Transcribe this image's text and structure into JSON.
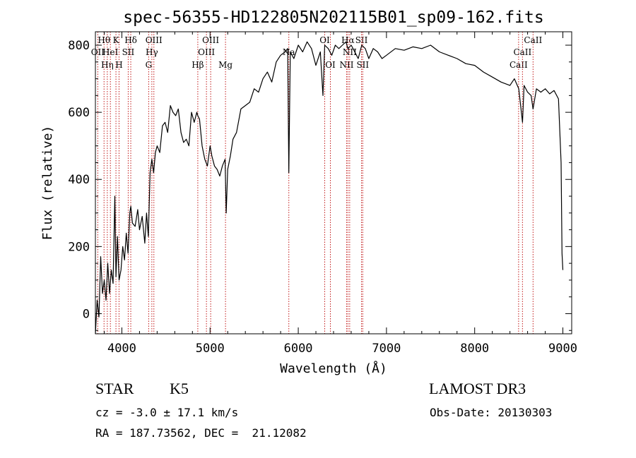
{
  "chart_data": {
    "type": "line",
    "title": "spec-56355-HD122805N202115B01_sp09-162.fits",
    "xlabel": "Wavelength (Å)",
    "ylabel": "Flux (relative)",
    "xlim": [
      3700,
      9100
    ],
    "ylim": [
      -60,
      840
    ],
    "x_ticks": [
      4000,
      5000,
      6000,
      7000,
      8000,
      9000
    ],
    "y_ticks": [
      0,
      200,
      400,
      600,
      800
    ],
    "grid": false,
    "series": [
      {
        "name": "spectrum",
        "x": [
          3700,
          3720,
          3740,
          3760,
          3780,
          3800,
          3820,
          3840,
          3860,
          3880,
          3900,
          3920,
          3933,
          3950,
          3968,
          3990,
          4010,
          4030,
          4050,
          4070,
          4090,
          4101,
          4120,
          4150,
          4180,
          4200,
          4230,
          4260,
          4280,
          4300,
          4320,
          4340,
          4360,
          4380,
          4400,
          4430,
          4460,
          4490,
          4520,
          4550,
          4580,
          4610,
          4640,
          4670,
          4700,
          4730,
          4760,
          4790,
          4820,
          4850,
          4861,
          4880,
          4910,
          4940,
          4970,
          5000,
          5020,
          5050,
          5080,
          5110,
          5140,
          5170,
          5183,
          5200,
          5230,
          5260,
          5300,
          5350,
          5400,
          5450,
          5500,
          5550,
          5600,
          5650,
          5700,
          5750,
          5800,
          5850,
          5880,
          5893,
          5910,
          5950,
          6000,
          6050,
          6100,
          6150,
          6200,
          6250,
          6280,
          6300,
          6340,
          6380,
          6420,
          6460,
          6500,
          6540,
          6563,
          6600,
          6640,
          6680,
          6720,
          6760,
          6800,
          6850,
          6900,
          6950,
          7000,
          7100,
          7200,
          7300,
          7400,
          7500,
          7600,
          7700,
          7800,
          7900,
          8000,
          8100,
          8200,
          8300,
          8400,
          8450,
          8500,
          8542,
          8560,
          8600,
          8640,
          8662,
          8700,
          8750,
          8800,
          8850,
          8900,
          8950,
          8980,
          8990,
          9000
        ],
        "y": [
          -60,
          40,
          -10,
          170,
          60,
          100,
          40,
          150,
          60,
          130,
          90,
          350,
          110,
          230,
          100,
          130,
          200,
          160,
          240,
          180,
          300,
          320,
          270,
          260,
          310,
          250,
          290,
          210,
          300,
          230,
          420,
          460,
          420,
          480,
          500,
          480,
          560,
          570,
          540,
          620,
          600,
          590,
          610,
          540,
          510,
          520,
          500,
          600,
          570,
          600,
          590,
          580,
          500,
          460,
          440,
          500,
          470,
          440,
          430,
          410,
          440,
          460,
          300,
          430,
          470,
          520,
          540,
          610,
          620,
          630,
          670,
          660,
          700,
          720,
          690,
          750,
          770,
          780,
          790,
          420,
          780,
          760,
          800,
          780,
          810,
          790,
          740,
          780,
          650,
          800,
          790,
          770,
          800,
          790,
          800,
          810,
          790,
          800,
          780,
          760,
          800,
          790,
          760,
          790,
          780,
          760,
          770,
          790,
          785,
          795,
          790,
          800,
          780,
          770,
          760,
          745,
          740,
          720,
          705,
          690,
          680,
          700,
          670,
          570,
          680,
          660,
          650,
          610,
          670,
          660,
          670,
          655,
          665,
          640,
          450,
          180,
          130
        ]
      }
    ],
    "line_markers": [
      {
        "x": 3727,
        "label": "OII",
        "row": 2
      },
      {
        "x": 3798,
        "label": "Hθ",
        "row": 1
      },
      {
        "x": 3835,
        "label": "Hη",
        "row": 3
      },
      {
        "x": 3870,
        "label": "HeI",
        "row": 2
      },
      {
        "x": 3933,
        "label": "K",
        "row": 1
      },
      {
        "x": 3968,
        "label": "H",
        "row": 3
      },
      {
        "x": 4072,
        "label": "SII",
        "row": 2
      },
      {
        "x": 4101,
        "label": "Hδ",
        "row": 1
      },
      {
        "x": 4304,
        "label": "G",
        "row": 3
      },
      {
        "x": 4340,
        "label": "Hγ",
        "row": 2
      },
      {
        "x": 4363,
        "label": "OIII",
        "row": 1
      },
      {
        "x": 4861,
        "label": "Hβ",
        "row": 3
      },
      {
        "x": 4959,
        "label": "OIII",
        "row": 2
      },
      {
        "x": 5007,
        "label": "OIII",
        "row": 1
      },
      {
        "x": 5175,
        "label": "Mg",
        "row": 3
      },
      {
        "x": 5893,
        "label": "Na",
        "row": 2
      },
      {
        "x": 6300,
        "label": "OI",
        "row": 1
      },
      {
        "x": 6364,
        "label": "OI",
        "row": 3
      },
      {
        "x": 6548,
        "label": "NII",
        "row": 3
      },
      {
        "x": 6563,
        "label": "Hα",
        "row": 1
      },
      {
        "x": 6583,
        "label": "NII",
        "row": 2
      },
      {
        "x": 6717,
        "label": "SII",
        "row": 1
      },
      {
        "x": 6731,
        "label": "SII",
        "row": 3
      },
      {
        "x": 8498,
        "label": "CaII",
        "row": 3
      },
      {
        "x": 8542,
        "label": "CaII",
        "row": 2
      },
      {
        "x": 8662,
        "label": "CaII",
        "row": 1
      }
    ]
  },
  "info": {
    "class": "STAR",
    "subclass": "K5",
    "survey": "LAMOST DR3",
    "cz": "cz = -3.0 ± 17.1 km/s",
    "obs_date": "Obs-Date: 20130303",
    "coords": "RA = 187.73562, DEC =  21.12082"
  }
}
